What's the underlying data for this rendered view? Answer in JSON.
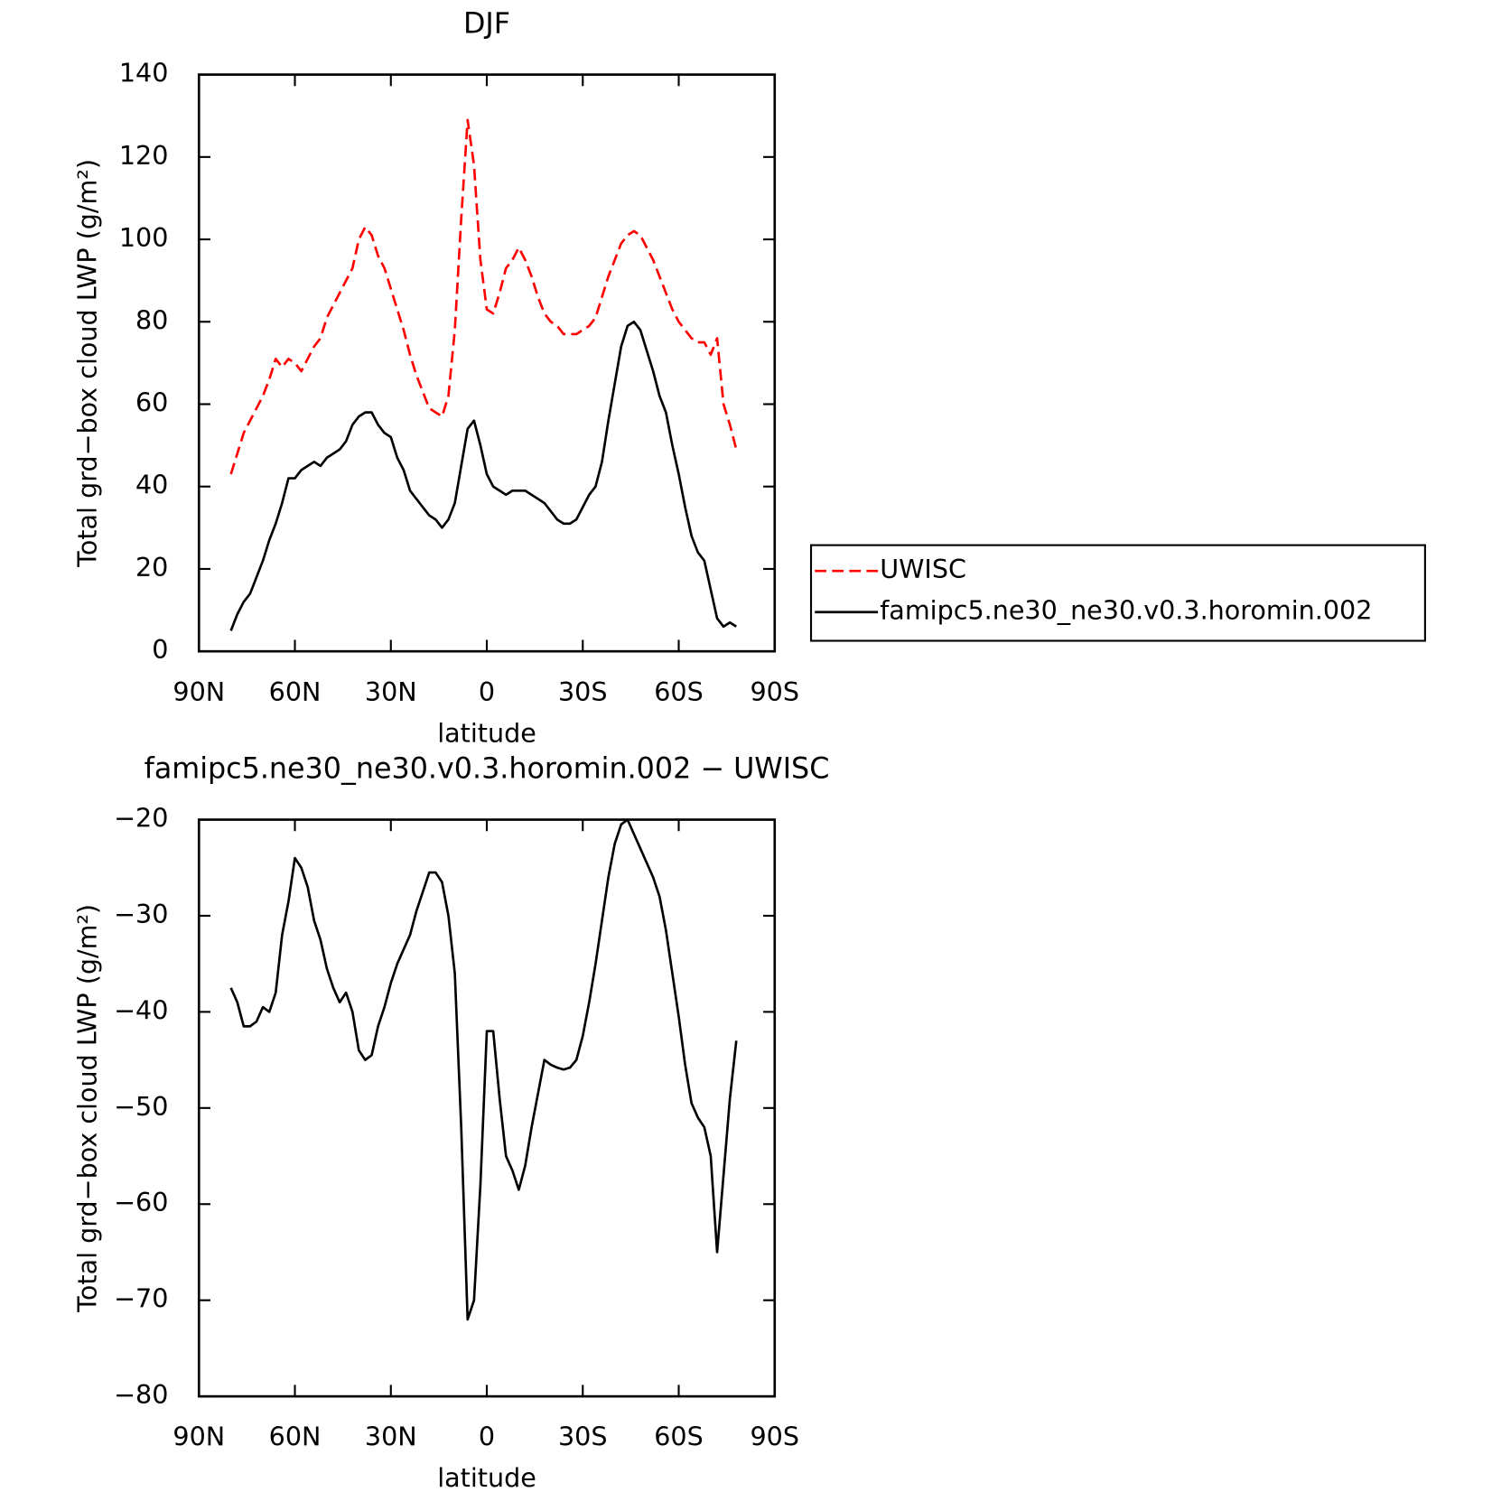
{
  "chart_data": [
    {
      "type": "line",
      "title": "DJF",
      "xlabel": "latitude",
      "ylabel": "Total grd−box cloud LWP (g/m²)",
      "x": [
        80,
        78,
        76,
        74,
        72,
        70,
        68,
        66,
        64,
        62,
        60,
        58,
        56,
        54,
        52,
        50,
        48,
        46,
        44,
        42,
        40,
        38,
        36,
        34,
        32,
        30,
        28,
        26,
        24,
        22,
        20,
        18,
        16,
        14,
        12,
        10,
        8,
        6,
        4,
        2,
        0,
        -2,
        -4,
        -6,
        -8,
        -10,
        -12,
        -14,
        -16,
        -18,
        -20,
        -22,
        -24,
        -26,
        -28,
        -30,
        -32,
        -34,
        -36,
        -38,
        -40,
        -42,
        -44,
        -46,
        -48,
        -50,
        -52,
        -54,
        -56,
        -58,
        -60,
        -62,
        -64,
        -66,
        -68,
        -70,
        -72,
        -74,
        -76,
        -78
      ],
      "xlim": [
        90,
        -90
      ],
      "xticks": [
        {
          "value": 90,
          "label": "90N"
        },
        {
          "value": 60,
          "label": "60N"
        },
        {
          "value": 30,
          "label": "30N"
        },
        0,
        {
          "value": -30,
          "label": "30S"
        },
        {
          "value": -60,
          "label": "60S"
        },
        {
          "value": -90,
          "label": "90S"
        }
      ],
      "ylim": [
        0,
        140
      ],
      "yticks": [
        0,
        20,
        40,
        60,
        80,
        100,
        120,
        140
      ],
      "legend": "right",
      "series": [
        {
          "name": "UWISC",
          "color": "#ff0000",
          "linestyle": "dashed",
          "values": [
            43,
            48,
            53,
            56,
            59,
            62,
            66,
            71,
            69,
            71,
            70,
            68,
            71,
            74,
            76,
            81,
            84,
            87,
            90,
            93,
            100,
            103,
            101,
            96,
            93,
            88,
            83,
            78,
            72,
            67,
            63,
            59,
            58,
            57,
            62,
            78,
            105,
            129,
            118,
            95,
            83,
            82,
            87,
            93,
            95,
            98,
            95,
            91,
            86,
            82,
            80,
            79,
            77,
            77,
            77,
            78,
            79,
            81,
            86,
            91,
            95,
            99,
            101,
            102,
            101,
            98,
            95,
            91,
            87,
            83,
            80,
            78,
            76,
            75,
            75,
            72,
            76,
            60,
            55,
            49
          ]
        },
        {
          "name": "famipc5.ne30_ne30.v0.3.horomin.002",
          "color": "#000000",
          "linestyle": "solid",
          "values": [
            5,
            9,
            12,
            14,
            18,
            22,
            27,
            31,
            36,
            42,
            42,
            44,
            45,
            46,
            45,
            47,
            48,
            49,
            51,
            55,
            57,
            58,
            58,
            55,
            53,
            52,
            47,
            44,
            39,
            37,
            35,
            33,
            32,
            30,
            32,
            36,
            45,
            54,
            56,
            50,
            43,
            40,
            39,
            38,
            39,
            39,
            39,
            38,
            37,
            36,
            34,
            32,
            31,
            31,
            32,
            35,
            38,
            40,
            46,
            56,
            65,
            74,
            79,
            80,
            78,
            73,
            68,
            62,
            58,
            50,
            43,
            35,
            28,
            24,
            22,
            15,
            8,
            6,
            7,
            6
          ]
        }
      ]
    },
    {
      "type": "line",
      "title": "famipc5.ne30_ne30.v0.3.horomin.002 − UWISC",
      "xlabel": "latitude",
      "ylabel": "Total grd−box cloud LWP (g/m²)",
      "x": [
        80,
        78,
        76,
        74,
        72,
        70,
        68,
        66,
        64,
        62,
        60,
        58,
        56,
        54,
        52,
        50,
        48,
        46,
        44,
        42,
        40,
        38,
        36,
        34,
        32,
        30,
        28,
        26,
        24,
        22,
        20,
        18,
        16,
        14,
        12,
        10,
        8,
        6,
        4,
        2,
        0,
        -2,
        -4,
        -6,
        -8,
        -10,
        -12,
        -14,
        -16,
        -18,
        -20,
        -22,
        -24,
        -26,
        -28,
        -30,
        -32,
        -34,
        -36,
        -38,
        -40,
        -42,
        -44,
        -46,
        -48,
        -50,
        -52,
        -54,
        -56,
        -58,
        -60,
        -62,
        -64,
        -66,
        -68,
        -70,
        -72,
        -74,
        -76,
        -78
      ],
      "xlim": [
        90,
        -90
      ],
      "xticks": [
        {
          "value": 90,
          "label": "90N"
        },
        {
          "value": 60,
          "label": "60N"
        },
        {
          "value": 30,
          "label": "30N"
        },
        0,
        {
          "value": -30,
          "label": "30S"
        },
        {
          "value": -60,
          "label": "60S"
        },
        {
          "value": -90,
          "label": "90S"
        }
      ],
      "ylim": [
        -80,
        -20
      ],
      "yticks": [
        {
          "value": -20,
          "label": "−20"
        },
        {
          "value": -30,
          "label": "−30"
        },
        {
          "value": -40,
          "label": "−40"
        },
        {
          "value": -50,
          "label": "−50"
        },
        {
          "value": -60,
          "label": "−60"
        },
        {
          "value": -70,
          "label": "−70"
        },
        {
          "value": -80,
          "label": "−80"
        }
      ],
      "series": [
        {
          "color": "#000000",
          "linestyle": "solid",
          "values": [
            -37.5,
            -39,
            -41.5,
            -41.5,
            -41,
            -39.5,
            -40,
            -38,
            -32,
            -28.5,
            -24,
            -25,
            -27,
            -30.5,
            -32.5,
            -35.5,
            -37.5,
            -39,
            -38,
            -40,
            -44,
            -45,
            -44.5,
            -41.5,
            -39.5,
            -37,
            -35,
            -33.5,
            -32,
            -29.5,
            -27.5,
            -25.5,
            -25.5,
            -26.5,
            -30,
            -36,
            -52,
            -72,
            -70,
            -58,
            -42,
            -42,
            -49,
            -55,
            -56.5,
            -58.5,
            -56,
            -52,
            -48.5,
            -45,
            -45.5,
            -45.8,
            -46,
            -45.8,
            -45,
            -42.5,
            -39,
            -35,
            -30.5,
            -26,
            -22.5,
            -20.5,
            -20,
            -21.5,
            -23,
            -24.5,
            -26,
            -28,
            -31.5,
            -36,
            -40.5,
            -45.5,
            -49.5,
            -51,
            -52,
            -55,
            -65,
            -57,
            -49,
            -43
          ]
        }
      ]
    }
  ]
}
